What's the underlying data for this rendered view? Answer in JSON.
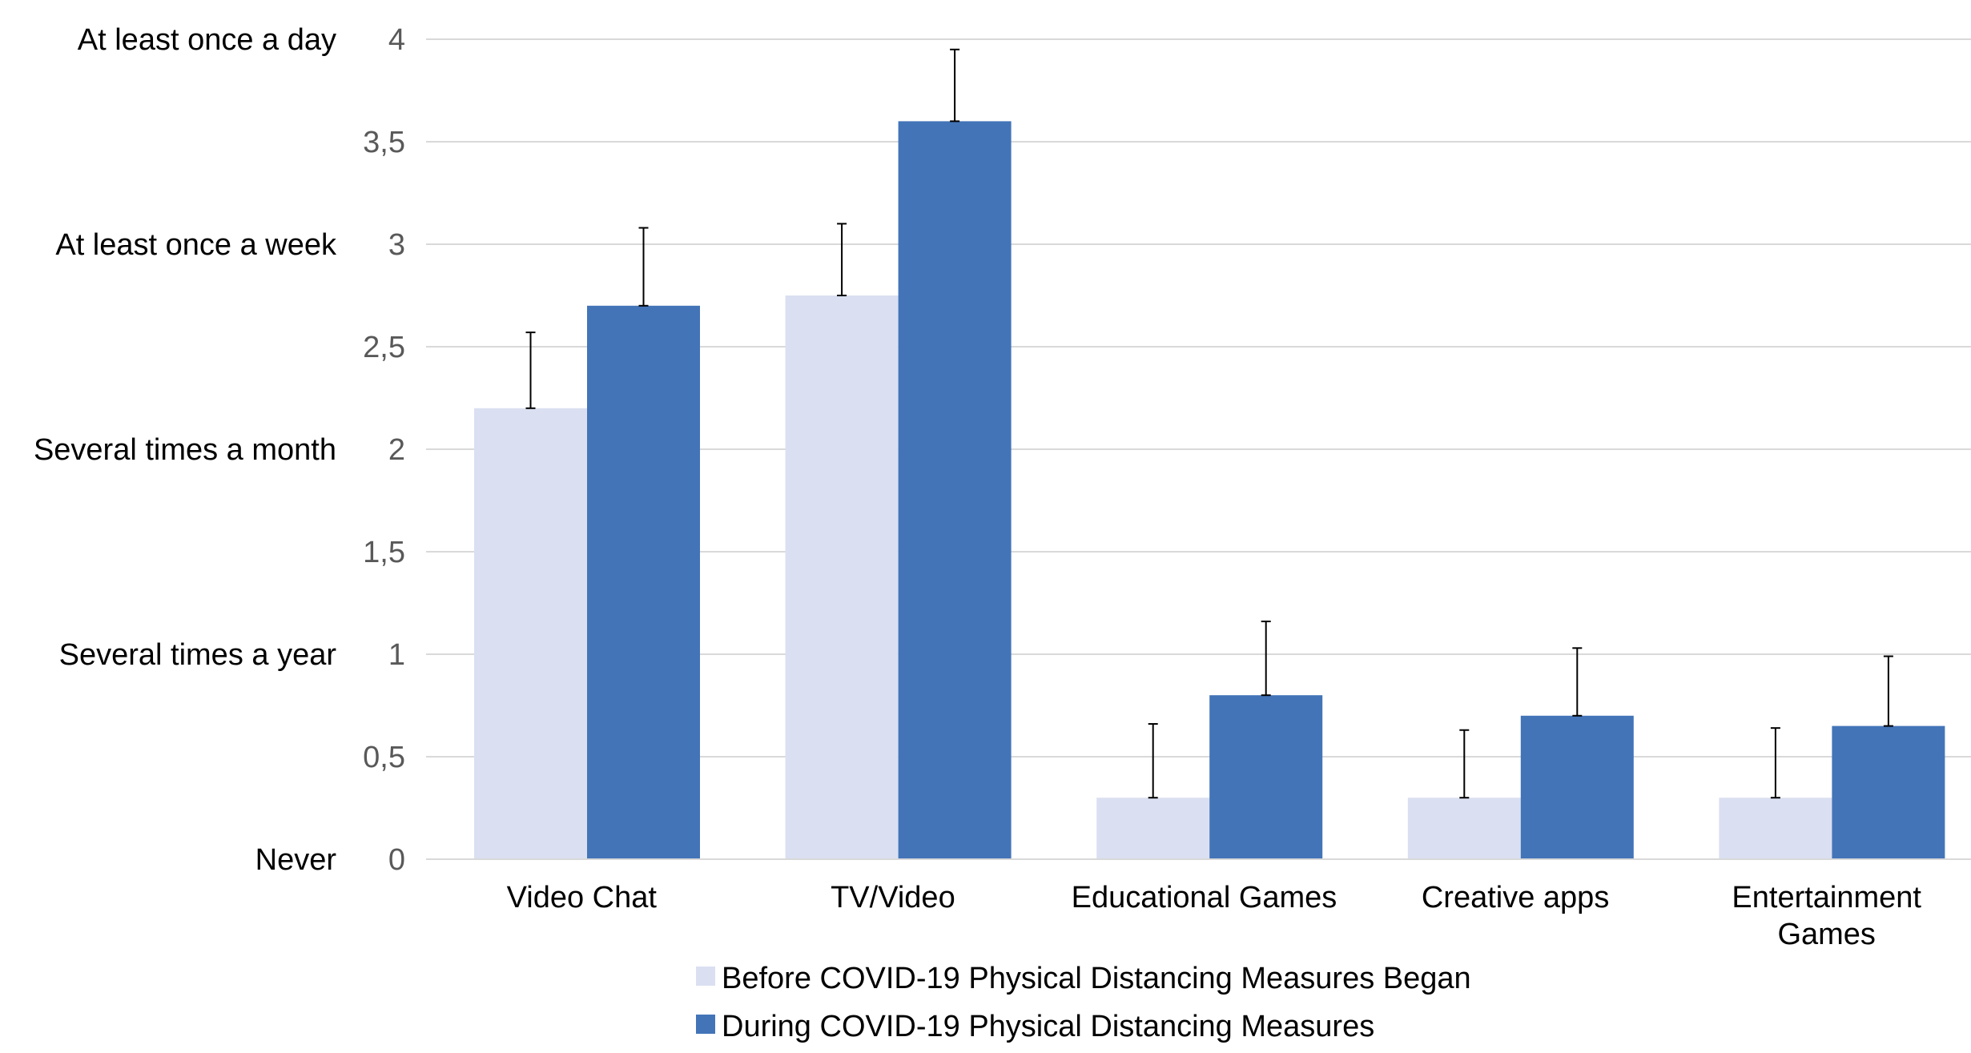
{
  "chart_data": {
    "type": "bar",
    "categories": [
      [
        "Video Chat"
      ],
      [
        "TV/Video"
      ],
      [
        "Educational Games"
      ],
      [
        "Creative apps"
      ],
      [
        "Entertainment",
        "Games"
      ]
    ],
    "series": [
      {
        "name": "Before COVID-19 Physical Distancing Measures Began",
        "color": "#dae0f1",
        "values": [
          2.2,
          2.75,
          0.3,
          0.3,
          0.3
        ],
        "error_upper": [
          0.37,
          0.35,
          0.36,
          0.33,
          0.34
        ]
      },
      {
        "name": "During COVID-19 Physical Distancing Measures",
        "color": "#4374b8",
        "values": [
          2.7,
          3.6,
          0.8,
          0.7,
          0.65
        ],
        "error_upper": [
          0.38,
          0.35,
          0.36,
          0.33,
          0.34
        ]
      }
    ],
    "ylim": [
      0,
      4
    ],
    "yticks": [
      0,
      0.5,
      1,
      1.5,
      2,
      2.5,
      3,
      3.5,
      4
    ],
    "ytick_labels": [
      "0",
      "0,5",
      "1",
      "1,5",
      "2",
      "2,5",
      "3",
      "3,5",
      "4"
    ],
    "frequency_labels": [
      {
        "value": 0,
        "label": "Never"
      },
      {
        "value": 1,
        "label": "Several times a year"
      },
      {
        "value": 2,
        "label": "Several times a month"
      },
      {
        "value": 3,
        "label": "At least once a week"
      },
      {
        "value": 4,
        "label": "At least once a day"
      }
    ],
    "grid": true,
    "legend_position": "bottom",
    "title": "",
    "xlabel": "",
    "ylabel": ""
  }
}
